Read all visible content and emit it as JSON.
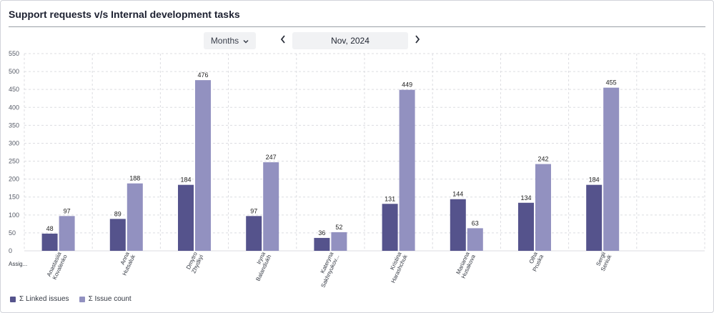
{
  "title": "Support requests v/s Internal development tasks",
  "controls": {
    "period_label": "Months",
    "date_label": "Nov, 2024"
  },
  "colors": {
    "linked": "#55538c",
    "issue": "#9291c0",
    "grid": "#dcdde1",
    "axis_text": "#555a66"
  },
  "chart_data": {
    "type": "bar",
    "title": "Support requests v/s Internal development tasks",
    "xlabel": "Assig...",
    "ylabel": "",
    "ylim": [
      0,
      550
    ],
    "yticks": [
      0,
      50,
      100,
      150,
      200,
      250,
      300,
      350,
      400,
      450,
      500,
      550
    ],
    "categories": [
      [
        "Anastasiia",
        "Kovalenko"
      ],
      [
        "Anna",
        "Hutsaluk"
      ],
      [
        "Dmytro",
        "Zhydkyi"
      ],
      [
        "Iryna",
        "Balandiukh"
      ],
      [
        "Kateryna",
        "Sakhnyukov..."
      ],
      [
        "Kristina",
        "Harashchuk"
      ],
      [
        "Marianna",
        "Husakova"
      ],
      [
        "Olha",
        "Pruska"
      ],
      [
        "Sergii",
        "Seniuk"
      ]
    ],
    "series": [
      {
        "name": "Σ Linked issues",
        "values": [
          48,
          89,
          184,
          97,
          36,
          131,
          144,
          134,
          184
        ]
      },
      {
        "name": "Σ Issue count",
        "values": [
          97,
          188,
          476,
          247,
          52,
          449,
          63,
          242,
          455
        ]
      }
    ],
    "legend": "bottom-left"
  }
}
